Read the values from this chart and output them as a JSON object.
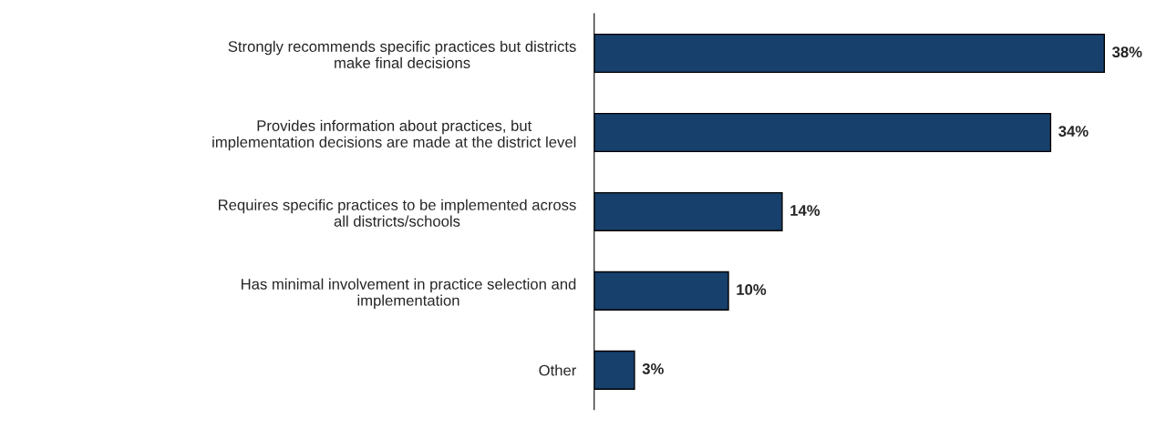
{
  "chart_data": {
    "type": "bar",
    "orientation": "horizontal",
    "categories": [
      "Strongly recommends specific practices but districts\nmake final decisions",
      "Provides information about practices, but\nimplementation decisions are made at the district level",
      "Requires specific practices to be implemented across\nall districts/schools",
      "Has minimal involvement in practice selection and\nimplementation",
      "Other"
    ],
    "values": [
      38,
      34,
      14,
      10,
      3
    ],
    "value_labels": [
      "38%",
      "34%",
      "14%",
      "10%",
      "3%"
    ],
    "color": "#17406d",
    "grid": false,
    "legend": false
  }
}
